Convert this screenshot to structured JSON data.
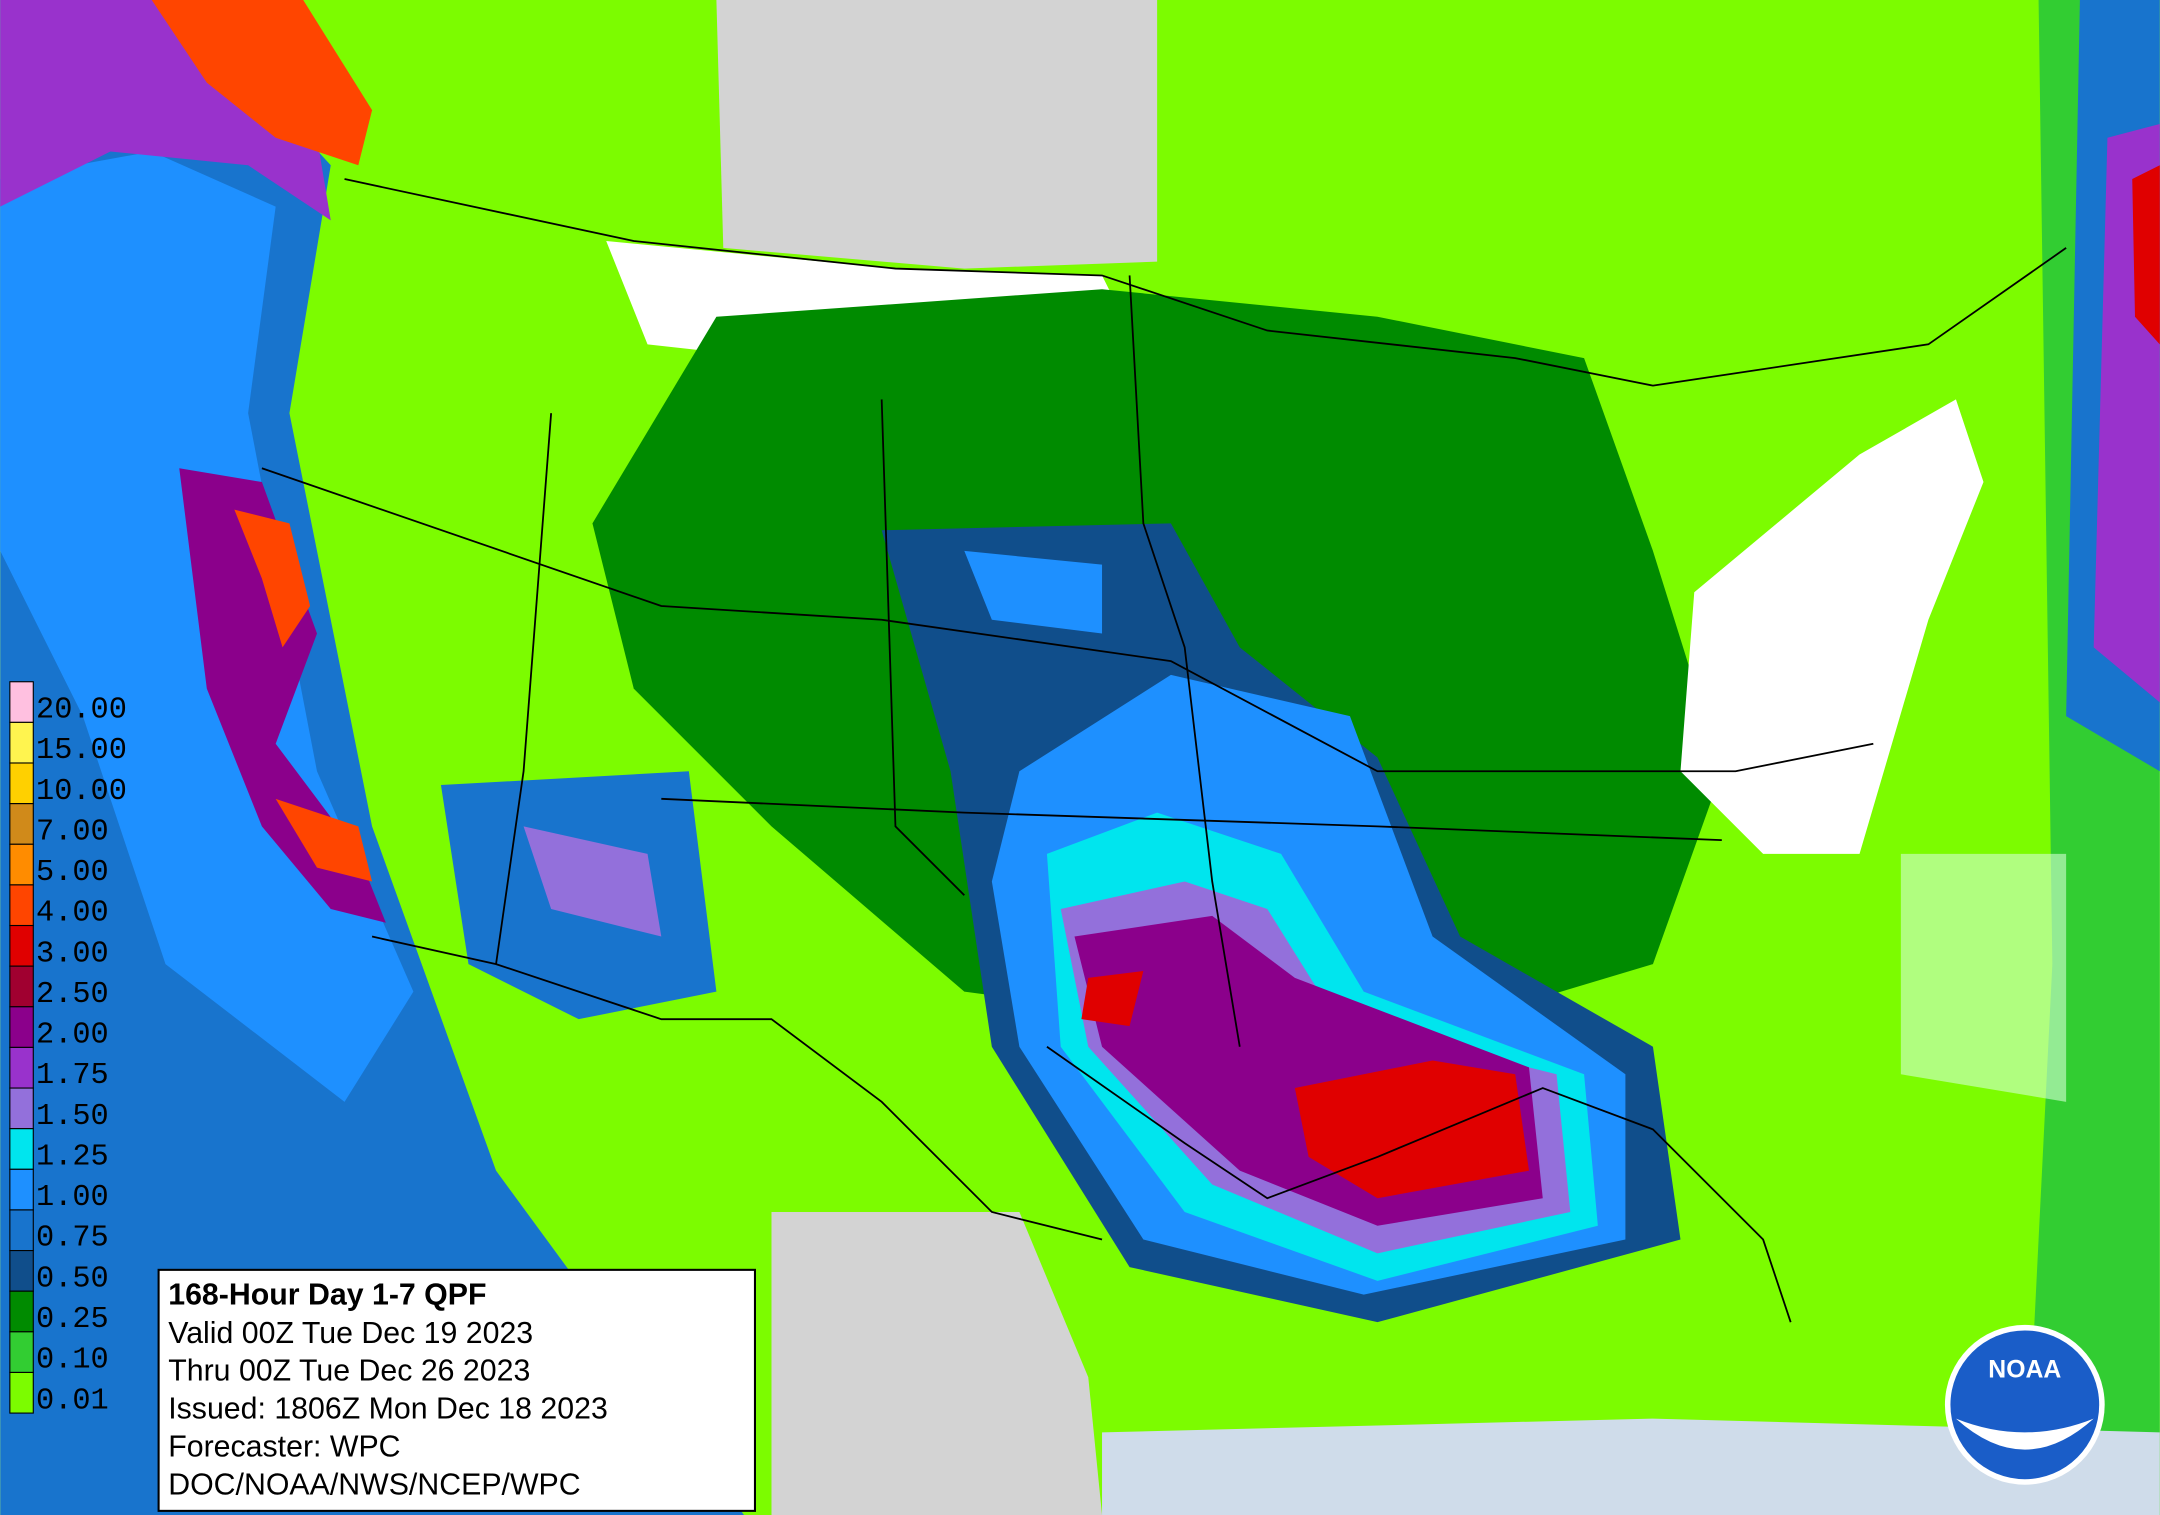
{
  "map": {
    "legend": [
      {
        "label": "20.00",
        "color": "#ffc0e0"
      },
      {
        "label": "15.00",
        "color": "#fff44f"
      },
      {
        "label": "10.00",
        "color": "#ffd000"
      },
      {
        "label": "7.00",
        "color": "#d08a1a"
      },
      {
        "label": "5.00",
        "color": "#ff8c00"
      },
      {
        "label": "4.00",
        "color": "#ff4500"
      },
      {
        "label": "3.00",
        "color": "#e00000"
      },
      {
        "label": "2.50",
        "color": "#a00030"
      },
      {
        "label": "2.00",
        "color": "#8b008b"
      },
      {
        "label": "1.75",
        "color": "#9932cc"
      },
      {
        "label": "1.50",
        "color": "#9370db"
      },
      {
        "label": "1.25",
        "color": "#00e5ee"
      },
      {
        "label": "1.00",
        "color": "#1e90ff"
      },
      {
        "label": "0.75",
        "color": "#1874cd"
      },
      {
        "label": "0.50",
        "color": "#104e8b"
      },
      {
        "label": "0.25",
        "color": "#008b00"
      },
      {
        "label": "0.10",
        "color": "#32cd32"
      },
      {
        "label": "0.01",
        "color": "#7cfc00"
      }
    ],
    "info": {
      "title": "168-Hour Day 1-7 QPF",
      "lines": [
        "Valid 00Z Tue Dec 19 2023",
        "Thru 00Z Tue Dec 26 2023",
        "Issued: 1806Z Mon Dec 18 2023",
        "Forecaster: WPC",
        "DOC/NOAA/NWS/NCEP/WPC"
      ]
    },
    "logo": "NOAA"
  }
}
